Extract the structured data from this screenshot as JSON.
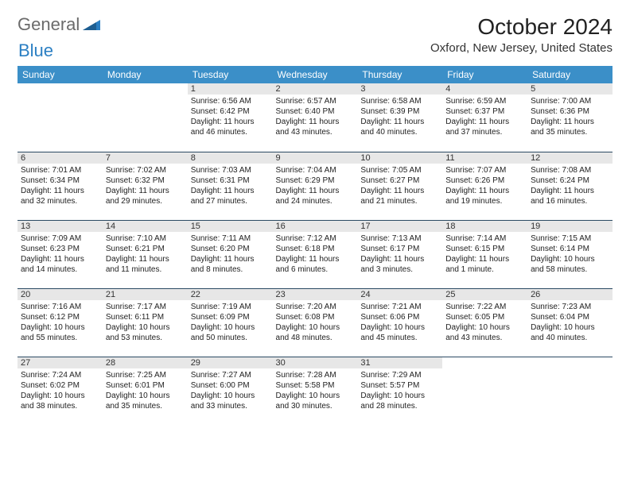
{
  "logo": {
    "text1": "General",
    "text2": "Blue"
  },
  "title": "October 2024",
  "location": "Oxford, New Jersey, United States",
  "colors": {
    "header_bg": "#3b8fc8",
    "header_text": "#ffffff",
    "daynum_bg": "#e7e7e7",
    "cell_border": "#2b4a63",
    "logo_gray": "#6b6b6b",
    "logo_blue": "#2b7fc3"
  },
  "weekdays": [
    "Sunday",
    "Monday",
    "Tuesday",
    "Wednesday",
    "Thursday",
    "Friday",
    "Saturday"
  ],
  "cells": [
    [
      null,
      null,
      {
        "day": "1",
        "sunrise": "Sunrise: 6:56 AM",
        "sunset": "Sunset: 6:42 PM",
        "daylight": "Daylight: 11 hours and 46 minutes."
      },
      {
        "day": "2",
        "sunrise": "Sunrise: 6:57 AM",
        "sunset": "Sunset: 6:40 PM",
        "daylight": "Daylight: 11 hours and 43 minutes."
      },
      {
        "day": "3",
        "sunrise": "Sunrise: 6:58 AM",
        "sunset": "Sunset: 6:39 PM",
        "daylight": "Daylight: 11 hours and 40 minutes."
      },
      {
        "day": "4",
        "sunrise": "Sunrise: 6:59 AM",
        "sunset": "Sunset: 6:37 PM",
        "daylight": "Daylight: 11 hours and 37 minutes."
      },
      {
        "day": "5",
        "sunrise": "Sunrise: 7:00 AM",
        "sunset": "Sunset: 6:36 PM",
        "daylight": "Daylight: 11 hours and 35 minutes."
      }
    ],
    [
      {
        "day": "6",
        "sunrise": "Sunrise: 7:01 AM",
        "sunset": "Sunset: 6:34 PM",
        "daylight": "Daylight: 11 hours and 32 minutes."
      },
      {
        "day": "7",
        "sunrise": "Sunrise: 7:02 AM",
        "sunset": "Sunset: 6:32 PM",
        "daylight": "Daylight: 11 hours and 29 minutes."
      },
      {
        "day": "8",
        "sunrise": "Sunrise: 7:03 AM",
        "sunset": "Sunset: 6:31 PM",
        "daylight": "Daylight: 11 hours and 27 minutes."
      },
      {
        "day": "9",
        "sunrise": "Sunrise: 7:04 AM",
        "sunset": "Sunset: 6:29 PM",
        "daylight": "Daylight: 11 hours and 24 minutes."
      },
      {
        "day": "10",
        "sunrise": "Sunrise: 7:05 AM",
        "sunset": "Sunset: 6:27 PM",
        "daylight": "Daylight: 11 hours and 21 minutes."
      },
      {
        "day": "11",
        "sunrise": "Sunrise: 7:07 AM",
        "sunset": "Sunset: 6:26 PM",
        "daylight": "Daylight: 11 hours and 19 minutes."
      },
      {
        "day": "12",
        "sunrise": "Sunrise: 7:08 AM",
        "sunset": "Sunset: 6:24 PM",
        "daylight": "Daylight: 11 hours and 16 minutes."
      }
    ],
    [
      {
        "day": "13",
        "sunrise": "Sunrise: 7:09 AM",
        "sunset": "Sunset: 6:23 PM",
        "daylight": "Daylight: 11 hours and 14 minutes."
      },
      {
        "day": "14",
        "sunrise": "Sunrise: 7:10 AM",
        "sunset": "Sunset: 6:21 PM",
        "daylight": "Daylight: 11 hours and 11 minutes."
      },
      {
        "day": "15",
        "sunrise": "Sunrise: 7:11 AM",
        "sunset": "Sunset: 6:20 PM",
        "daylight": "Daylight: 11 hours and 8 minutes."
      },
      {
        "day": "16",
        "sunrise": "Sunrise: 7:12 AM",
        "sunset": "Sunset: 6:18 PM",
        "daylight": "Daylight: 11 hours and 6 minutes."
      },
      {
        "day": "17",
        "sunrise": "Sunrise: 7:13 AM",
        "sunset": "Sunset: 6:17 PM",
        "daylight": "Daylight: 11 hours and 3 minutes."
      },
      {
        "day": "18",
        "sunrise": "Sunrise: 7:14 AM",
        "sunset": "Sunset: 6:15 PM",
        "daylight": "Daylight: 11 hours and 1 minute."
      },
      {
        "day": "19",
        "sunrise": "Sunrise: 7:15 AM",
        "sunset": "Sunset: 6:14 PM",
        "daylight": "Daylight: 10 hours and 58 minutes."
      }
    ],
    [
      {
        "day": "20",
        "sunrise": "Sunrise: 7:16 AM",
        "sunset": "Sunset: 6:12 PM",
        "daylight": "Daylight: 10 hours and 55 minutes."
      },
      {
        "day": "21",
        "sunrise": "Sunrise: 7:17 AM",
        "sunset": "Sunset: 6:11 PM",
        "daylight": "Daylight: 10 hours and 53 minutes."
      },
      {
        "day": "22",
        "sunrise": "Sunrise: 7:19 AM",
        "sunset": "Sunset: 6:09 PM",
        "daylight": "Daylight: 10 hours and 50 minutes."
      },
      {
        "day": "23",
        "sunrise": "Sunrise: 7:20 AM",
        "sunset": "Sunset: 6:08 PM",
        "daylight": "Daylight: 10 hours and 48 minutes."
      },
      {
        "day": "24",
        "sunrise": "Sunrise: 7:21 AM",
        "sunset": "Sunset: 6:06 PM",
        "daylight": "Daylight: 10 hours and 45 minutes."
      },
      {
        "day": "25",
        "sunrise": "Sunrise: 7:22 AM",
        "sunset": "Sunset: 6:05 PM",
        "daylight": "Daylight: 10 hours and 43 minutes."
      },
      {
        "day": "26",
        "sunrise": "Sunrise: 7:23 AM",
        "sunset": "Sunset: 6:04 PM",
        "daylight": "Daylight: 10 hours and 40 minutes."
      }
    ],
    [
      {
        "day": "27",
        "sunrise": "Sunrise: 7:24 AM",
        "sunset": "Sunset: 6:02 PM",
        "daylight": "Daylight: 10 hours and 38 minutes."
      },
      {
        "day": "28",
        "sunrise": "Sunrise: 7:25 AM",
        "sunset": "Sunset: 6:01 PM",
        "daylight": "Daylight: 10 hours and 35 minutes."
      },
      {
        "day": "29",
        "sunrise": "Sunrise: 7:27 AM",
        "sunset": "Sunset: 6:00 PM",
        "daylight": "Daylight: 10 hours and 33 minutes."
      },
      {
        "day": "30",
        "sunrise": "Sunrise: 7:28 AM",
        "sunset": "Sunset: 5:58 PM",
        "daylight": "Daylight: 10 hours and 30 minutes."
      },
      {
        "day": "31",
        "sunrise": "Sunrise: 7:29 AM",
        "sunset": "Sunset: 5:57 PM",
        "daylight": "Daylight: 10 hours and 28 minutes."
      },
      null,
      null
    ]
  ]
}
